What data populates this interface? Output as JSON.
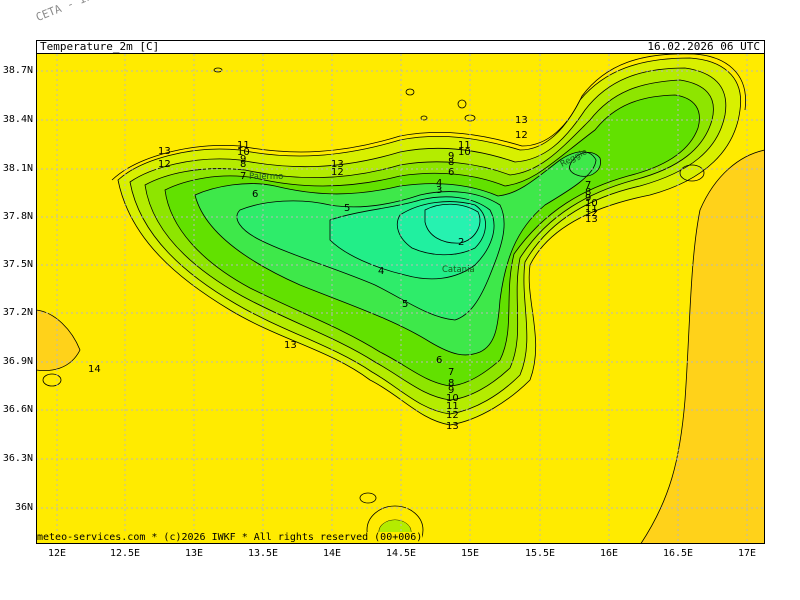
{
  "watermark": "CETA - In",
  "header": {
    "title": "Temperature_2m [C]",
    "valid_time": "16.02.2026 06 UTC"
  },
  "footer": "meteo-services.com * (c)2026 IWKF * All rights reserved (00+006)",
  "axes": {
    "lat_labels": [
      "38.7N",
      "38.4N",
      "38.1N",
      "37.8N",
      "37.5N",
      "37.2N",
      "36.9N",
      "36.6N",
      "36.3N",
      "36N"
    ],
    "lon_labels": [
      "12E",
      "12.5E",
      "13E",
      "13.5E",
      "14E",
      "14.5E",
      "15E",
      "15.5E",
      "16E",
      "16.5E",
      "17E"
    ]
  },
  "places": [
    "Palermo",
    "Catania",
    "Reggio"
  ],
  "contour_labels": [
    "13",
    "12",
    "11",
    "10",
    "9",
    "8",
    "7",
    "6",
    "5",
    "4",
    "3",
    "2",
    "14"
  ],
  "colors": {
    "sea_warm": "#ffeb00",
    "sea_warmer": "#ffd21a",
    "land_cool": "#c8ef00",
    "land_cold": "#7be600",
    "land_colder": "#3ee84a",
    "land_coldest": "#26ee90",
    "grid": "#b8b8b8"
  }
}
